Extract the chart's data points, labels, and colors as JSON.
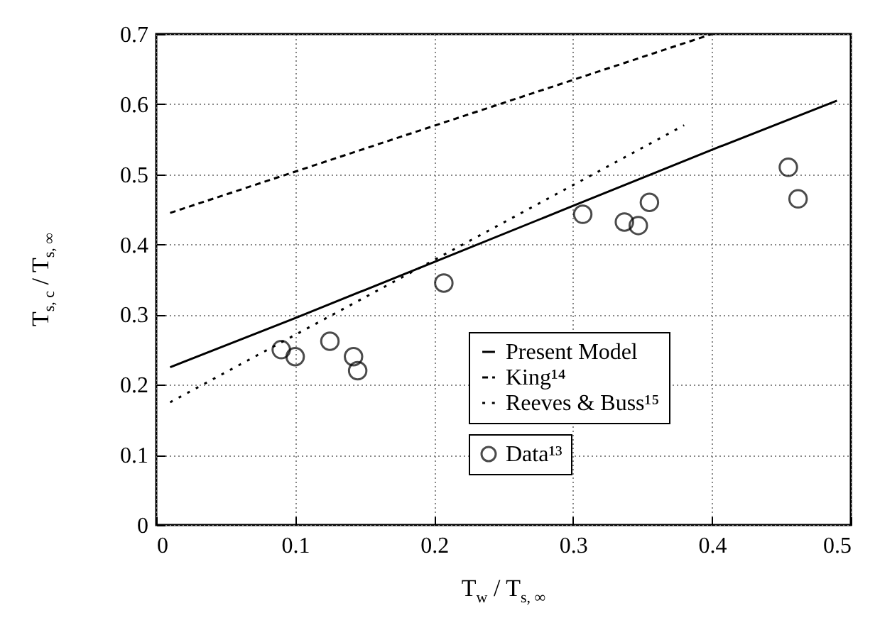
{
  "chart_data": {
    "type": "line",
    "xlabel": "T$_{w}$ / T$_{s, ∞}$",
    "ylabel": "T$_{s, c}$ / T$_{s, ∞}$",
    "xlim": [
      0,
      0.5
    ],
    "xticks": [
      0,
      {
        "value": 0.1,
        "label": "0.1"
      },
      {
        "value": 0.2,
        "label": "0.2"
      },
      {
        "value": 0.3,
        "label": "0.3"
      },
      {
        "value": 0.4,
        "label": "0.4"
      },
      {
        "value": 0.5,
        "label": "0.5"
      }
    ],
    "ylim": [
      0,
      0.7
    ],
    "yticks": [
      0,
      0.1,
      0.2,
      0.3,
      0.4,
      0.5,
      0.6,
      0.7
    ],
    "grid": true,
    "legend": "bottom right",
    "series": [
      {
        "name": "Present Model",
        "color": "#000000",
        "line_style": "solid",
        "x": [
          0.01,
          0.1,
          0.2,
          0.3,
          0.4,
          0.49
        ],
        "values": [
          0.225,
          0.295,
          0.375,
          0.455,
          0.535,
          0.605
        ]
      },
      {
        "name": "King¹⁴",
        "color": "#000000",
        "line_style": "dashed",
        "x": [
          0.01,
          0.4
        ],
        "values": [
          0.445,
          0.7
        ]
      },
      {
        "name": "Reeves & Buss¹⁵",
        "color": "#000000",
        "line_style": "dotted",
        "x": [
          0.01,
          0.38
        ],
        "values": [
          0.175,
          0.57
        ]
      },
      {
        "name": "Data¹³",
        "type": "scatter",
        "marker": "circle",
        "color": "#000000",
        "x": [
          0.09,
          0.1,
          0.125,
          0.142,
          0.145,
          0.207,
          0.307,
          0.337,
          0.347,
          0.355,
          0.455,
          0.462
        ],
        "values": [
          0.25,
          0.24,
          0.262,
          0.24,
          0.22,
          0.345,
          0.443,
          0.432,
          0.427,
          0.46,
          0.51,
          0.465
        ]
      }
    ]
  }
}
